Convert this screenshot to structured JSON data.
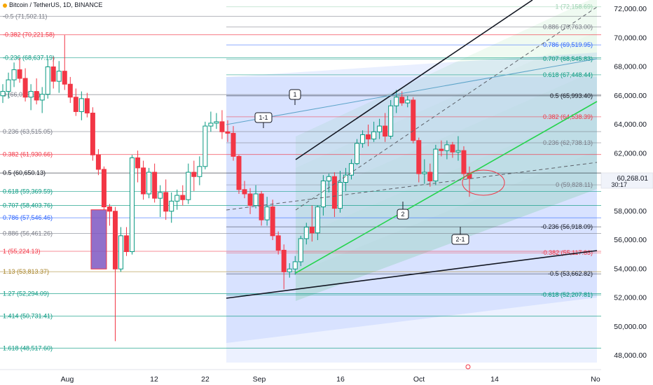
{
  "header": {
    "symbol": "Bitcoin / TetherUS, 1D, BINANCE"
  },
  "price_axis": {
    "ticks": [
      "72,000.00",
      "70,000.00",
      "68,000.00",
      "66,000.00",
      "64,000.00",
      "62,000.00",
      "58,000.00",
      "56,000.00",
      "54,000.00",
      "52,000.00",
      "50,000.00",
      "48,000.00"
    ],
    "last_price": "60,268.01",
    "countdown": "30:17"
  },
  "time_axis": {
    "labels": [
      "Aug",
      "12",
      "22",
      "Sep",
      "16",
      "Oct",
      "14",
      "No"
    ]
  },
  "fib_left": {
    "levels": [
      {
        "label": "-0.5 (71,502.11)",
        "price": 71502.11,
        "color": "#787b86"
      },
      {
        "label": "-0.382 (70,221.58)",
        "price": 70221.58,
        "color": "#f23645"
      },
      {
        "label": "-0.236 (68,637.19)",
        "price": 68637.19,
        "color": "#089981"
      },
      {
        "label": "0 (66,076.12)",
        "price": 66076.12,
        "color": "#787b86"
      },
      {
        "label": "0.236 (63,515.05)",
        "price": 63515.05,
        "color": "#787b86"
      },
      {
        "label": "0.382 (61,930.66)",
        "price": 61930.66,
        "color": "#f23645"
      },
      {
        "label": "0.5 (60,650.13)",
        "price": 60650.13,
        "color": "#131722"
      },
      {
        "label": "0.618 (59,369.59)",
        "price": 59369.59,
        "color": "#089981"
      },
      {
        "label": "0.707 (58,403.76)",
        "price": 58403.76,
        "color": "#089981"
      },
      {
        "label": "0.786 (57,546.46)",
        "price": 57546.46,
        "color": "#2962ff"
      },
      {
        "label": "0.886 (56,461.26)",
        "price": 56461.26,
        "color": "#787b86"
      },
      {
        "label": "1 (55,224.13)",
        "price": 55224.13,
        "color": "#f23645"
      },
      {
        "label": "1.13 (53,813.37)",
        "price": 53813.37,
        "color": "#a8842a"
      },
      {
        "label": "1.27 (52,294.09)",
        "price": 52294.09,
        "color": "#089981"
      },
      {
        "label": "1.414 (50,731.41)",
        "price": 50731.41,
        "color": "#089981"
      },
      {
        "label": "1.618 (48,517.60)",
        "price": 48517.6,
        "color": "#089981"
      }
    ]
  },
  "fib_right": {
    "levels": [
      {
        "label": "1 (72,158.69)",
        "price": 72158.69,
        "color": "#9ad1b0"
      },
      {
        "label": "0.886 (70,763.00)",
        "price": 70763.0,
        "color": "#787b86"
      },
      {
        "label": "0.786 (69,519.95)",
        "price": 69519.95,
        "color": "#2962ff"
      },
      {
        "label": "0.707 (68,545.83)",
        "price": 68545.83,
        "color": "#089981"
      },
      {
        "label": "0.618 (67,448.44)",
        "price": 67448.44,
        "color": "#089981"
      },
      {
        "label": "0.5 (65,993.40)",
        "price": 65993.4,
        "color": "#131722"
      },
      {
        "label": "0.382 (64,538.39)",
        "price": 64538.39,
        "color": "#f23645"
      },
      {
        "label": "0.236 (62,738.13)",
        "price": 62738.13,
        "color": "#787b86"
      },
      {
        "label": "0 (59,828.11)",
        "price": 59828.11,
        "color": "#787b86"
      },
      {
        "label": "-0.236 (56,918.09)",
        "price": 56918.09,
        "color": "#131722"
      },
      {
        "label": "-0.382 (55,117.83)",
        "price": 55117.83,
        "color": "#f23645"
      },
      {
        "label": "-0.5 (53,662.82)",
        "price": 53662.82,
        "color": "#131722"
      },
      {
        "label": "-0.618 (52,207.81)",
        "price": 52207.81,
        "color": "#089981"
      }
    ]
  },
  "callouts": [
    {
      "label": "1",
      "price": 66000
    },
    {
      "label": "1-1",
      "price": 64500
    },
    {
      "label": "2",
      "price": 58400
    },
    {
      "label": "2-1",
      "price": 55800
    }
  ],
  "colors": {
    "bull": "#089981",
    "bear": "#f23645",
    "channel": "#2ebd4e",
    "blue_zone": "#2962ff"
  },
  "chart_data": {
    "type": "candlestick",
    "symbol": "Bitcoin / TetherUS",
    "timeframe": "1D",
    "exchange": "BINANCE",
    "y_unit": "USDT",
    "ylim": [
      47000,
      72500
    ],
    "last_price": 60268.01,
    "candles": [
      {
        "o": 66000,
        "h": 66800,
        "l": 65500,
        "c": 66300
      },
      {
        "o": 66300,
        "h": 67600,
        "l": 65800,
        "c": 67100
      },
      {
        "o": 67100,
        "h": 68300,
        "l": 66600,
        "c": 67800
      },
      {
        "o": 67800,
        "h": 68600,
        "l": 66900,
        "c": 67200
      },
      {
        "o": 67200,
        "h": 67900,
        "l": 65600,
        "c": 65900
      },
      {
        "o": 65900,
        "h": 66800,
        "l": 65000,
        "c": 66300
      },
      {
        "o": 66300,
        "h": 67200,
        "l": 65400,
        "c": 65700
      },
      {
        "o": 65700,
        "h": 66600,
        "l": 64800,
        "c": 66100
      },
      {
        "o": 66100,
        "h": 68500,
        "l": 65800,
        "c": 68000
      },
      {
        "o": 68000,
        "h": 68700,
        "l": 66500,
        "c": 67000
      },
      {
        "o": 67000,
        "h": 68400,
        "l": 66200,
        "c": 67700
      },
      {
        "o": 67700,
        "h": 70200,
        "l": 66400,
        "c": 66800
      },
      {
        "o": 66800,
        "h": 67300,
        "l": 65500,
        "c": 65900
      },
      {
        "o": 65900,
        "h": 66500,
        "l": 64600,
        "c": 64900
      },
      {
        "o": 64900,
        "h": 66300,
        "l": 64300,
        "c": 65800
      },
      {
        "o": 65800,
        "h": 66200,
        "l": 64500,
        "c": 64800
      },
      {
        "o": 64800,
        "h": 65200,
        "l": 61500,
        "c": 61900
      },
      {
        "o": 61900,
        "h": 62300,
        "l": 60500,
        "c": 60900
      },
      {
        "o": 60900,
        "h": 61100,
        "l": 58100,
        "c": 58300
      },
      {
        "o": 58300,
        "h": 58500,
        "l": 57000,
        "c": 58000
      },
      {
        "o": 58000,
        "h": 58300,
        "l": 49000,
        "c": 54000
      },
      {
        "o": 54000,
        "h": 56900,
        "l": 53800,
        "c": 56300
      },
      {
        "o": 56300,
        "h": 56900,
        "l": 54900,
        "c": 55200
      },
      {
        "o": 55200,
        "h": 61900,
        "l": 55000,
        "c": 61700
      },
      {
        "o": 61700,
        "h": 62200,
        "l": 60000,
        "c": 61000
      },
      {
        "o": 61000,
        "h": 61500,
        "l": 58800,
        "c": 59200
      },
      {
        "o": 59200,
        "h": 61000,
        "l": 58900,
        "c": 60700
      },
      {
        "o": 60700,
        "h": 61300,
        "l": 58600,
        "c": 58900
      },
      {
        "o": 58900,
        "h": 59800,
        "l": 57600,
        "c": 59300
      },
      {
        "o": 59300,
        "h": 60200,
        "l": 57400,
        "c": 58000
      },
      {
        "o": 58000,
        "h": 59300,
        "l": 57200,
        "c": 58700
      },
      {
        "o": 58700,
        "h": 59500,
        "l": 58100,
        "c": 59100
      },
      {
        "o": 59100,
        "h": 59800,
        "l": 58400,
        "c": 58800
      },
      {
        "o": 58800,
        "h": 61300,
        "l": 58500,
        "c": 60700
      },
      {
        "o": 60700,
        "h": 61500,
        "l": 59400,
        "c": 60400
      },
      {
        "o": 60400,
        "h": 61800,
        "l": 59800,
        "c": 61100
      },
      {
        "o": 61100,
        "h": 64200,
        "l": 60900,
        "c": 63900
      },
      {
        "o": 63900,
        "h": 64900,
        "l": 63500,
        "c": 64100
      },
      {
        "o": 64100,
        "h": 64800,
        "l": 63700,
        "c": 64200
      },
      {
        "o": 64200,
        "h": 65000,
        "l": 63000,
        "c": 63500
      },
      {
        "o": 63500,
        "h": 64300,
        "l": 62800,
        "c": 63400
      },
      {
        "o": 63400,
        "h": 63900,
        "l": 61500,
        "c": 61800
      },
      {
        "o": 61800,
        "h": 61900,
        "l": 59200,
        "c": 59500
      },
      {
        "o": 59500,
        "h": 60100,
        "l": 58900,
        "c": 59200
      },
      {
        "o": 59200,
        "h": 59600,
        "l": 57800,
        "c": 58400
      },
      {
        "o": 58400,
        "h": 59800,
        "l": 58200,
        "c": 59200
      },
      {
        "o": 59200,
        "h": 59400,
        "l": 57000,
        "c": 57400
      },
      {
        "o": 57400,
        "h": 59000,
        "l": 57000,
        "c": 58300
      },
      {
        "o": 58300,
        "h": 58800,
        "l": 56000,
        "c": 56300
      },
      {
        "o": 56300,
        "h": 56600,
        "l": 55000,
        "c": 55300
      },
      {
        "o": 55300,
        "h": 55700,
        "l": 52600,
        "c": 53800
      },
      {
        "o": 53800,
        "h": 54400,
        "l": 53400,
        "c": 54000
      },
      {
        "o": 54000,
        "h": 54900,
        "l": 53600,
        "c": 54500
      },
      {
        "o": 54500,
        "h": 56300,
        "l": 54200,
        "c": 56100
      },
      {
        "o": 56100,
        "h": 57200,
        "l": 55700,
        "c": 56900
      },
      {
        "o": 56900,
        "h": 58400,
        "l": 55900,
        "c": 56500
      },
      {
        "o": 56500,
        "h": 58400,
        "l": 56000,
        "c": 58300
      },
      {
        "o": 58300,
        "h": 60500,
        "l": 57700,
        "c": 60100
      },
      {
        "o": 60100,
        "h": 60600,
        "l": 59300,
        "c": 60400
      },
      {
        "o": 60400,
        "h": 60700,
        "l": 57600,
        "c": 58200
      },
      {
        "o": 58200,
        "h": 60800,
        "l": 57900,
        "c": 60000
      },
      {
        "o": 60000,
        "h": 61000,
        "l": 59400,
        "c": 60500
      },
      {
        "o": 60500,
        "h": 61600,
        "l": 60200,
        "c": 61300
      },
      {
        "o": 61300,
        "h": 63000,
        "l": 61200,
        "c": 62700
      },
      {
        "o": 62700,
        "h": 63600,
        "l": 62400,
        "c": 63300
      },
      {
        "o": 63300,
        "h": 64000,
        "l": 62500,
        "c": 63000
      },
      {
        "o": 63000,
        "h": 64200,
        "l": 62800,
        "c": 63500
      },
      {
        "o": 63500,
        "h": 64400,
        "l": 63000,
        "c": 63900
      },
      {
        "o": 63900,
        "h": 64800,
        "l": 62800,
        "c": 63200
      },
      {
        "o": 63200,
        "h": 65700,
        "l": 63000,
        "c": 65300
      },
      {
        "o": 65300,
        "h": 66400,
        "l": 64800,
        "c": 65900
      },
      {
        "o": 65900,
        "h": 66300,
        "l": 65300,
        "c": 65500
      },
      {
        "o": 65500,
        "h": 66000,
        "l": 65200,
        "c": 65700
      },
      {
        "o": 65700,
        "h": 65900,
        "l": 62700,
        "c": 62900
      },
      {
        "o": 62900,
        "h": 63100,
        "l": 60000,
        "c": 60600
      },
      {
        "o": 60600,
        "h": 61600,
        "l": 59900,
        "c": 60700
      },
      {
        "o": 60700,
        "h": 61300,
        "l": 59700,
        "c": 60100
      },
      {
        "o": 60100,
        "h": 62600,
        "l": 59800,
        "c": 62300
      },
      {
        "o": 62300,
        "h": 62900,
        "l": 61800,
        "c": 62200
      },
      {
        "o": 62200,
        "h": 62900,
        "l": 61600,
        "c": 62600
      },
      {
        "o": 62600,
        "h": 62800,
        "l": 61700,
        "c": 62100
      },
      {
        "o": 62100,
        "h": 63200,
        "l": 61500,
        "c": 62200
      },
      {
        "o": 62200,
        "h": 62500,
        "l": 60300,
        "c": 60600
      },
      {
        "o": 60600,
        "h": 61100,
        "l": 59000,
        "c": 60268
      }
    ]
  }
}
